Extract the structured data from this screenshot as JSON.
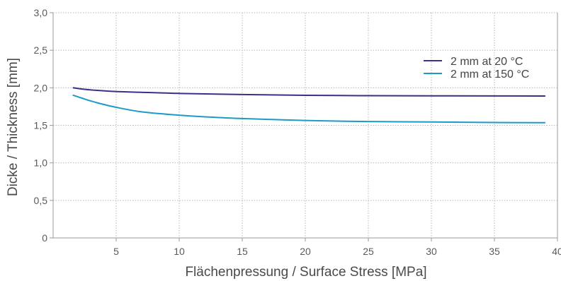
{
  "chart_data": {
    "type": "line",
    "title": "",
    "xlabel": "Flächenpressung / Surface Stress   [MPa]",
    "ylabel": "Dicke / Thickness   [mm]",
    "xlim": [
      0,
      40
    ],
    "ylim": [
      0,
      3.0
    ],
    "x_ticks": [
      5,
      10,
      15,
      20,
      25,
      30,
      35,
      40
    ],
    "x_tick_labels": [
      "5",
      "10",
      "15",
      "20",
      "25",
      "30",
      "35",
      "40"
    ],
    "y_ticks": [
      0,
      0.5,
      1.0,
      1.5,
      2.0,
      2.5,
      3.0
    ],
    "y_tick_labels": [
      "0",
      "0,5",
      "1,0",
      "1,5",
      "2,0",
      "2,5",
      "3,0"
    ],
    "grid": true,
    "legend_position": "top-right",
    "series": [
      {
        "name": "2 mm at 20 °C",
        "color": "#3b2f8c",
        "x": [
          1.6,
          2.5,
          3.5,
          5,
          7,
          10,
          15,
          20,
          25,
          30,
          35,
          39
        ],
        "y": [
          2.0,
          1.98,
          1.965,
          1.95,
          1.94,
          1.925,
          1.91,
          1.9,
          1.895,
          1.893,
          1.892,
          1.89
        ]
      },
      {
        "name": "2 mm at 150 °C",
        "color": "#1e9ac9",
        "x": [
          1.6,
          2.5,
          3.5,
          5,
          7,
          10,
          13,
          15,
          20,
          25,
          30,
          35,
          39
        ],
        "y": [
          1.9,
          1.85,
          1.8,
          1.74,
          1.68,
          1.635,
          1.605,
          1.59,
          1.565,
          1.55,
          1.545,
          1.538,
          1.535
        ]
      }
    ]
  }
}
